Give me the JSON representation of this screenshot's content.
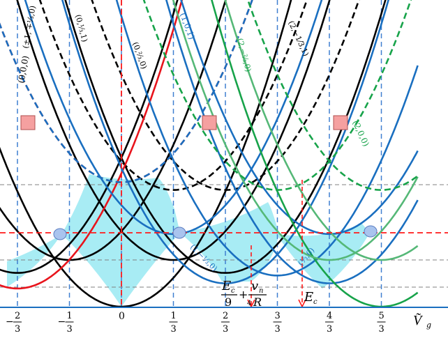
{
  "x_ticks": [
    {
      "id": "m2",
      "num": "2",
      "den": "3",
      "sign": "−",
      "v": -0.6667
    },
    {
      "id": "m1",
      "num": "1",
      "den": "3",
      "sign": "−",
      "v": -0.3333
    },
    {
      "id": "z",
      "num": "0",
      "den": "",
      "sign": "",
      "v": 0
    },
    {
      "id": "p1",
      "num": "1",
      "den": "3",
      "sign": "",
      "v": 0.3333
    },
    {
      "id": "p2",
      "num": "2",
      "den": "3",
      "sign": "",
      "v": 0.6667
    },
    {
      "id": "p3",
      "num": "3",
      "den": "3",
      "sign": "",
      "v": 1.0
    },
    {
      "id": "p4",
      "num": "4",
      "den": "3",
      "sign": "",
      "v": 1.3333
    },
    {
      "id": "p5",
      "num": "5",
      "den": "3",
      "sign": "",
      "v": 1.6667
    }
  ],
  "axis_label": "V͂",
  "axis_label_sub": "g",
  "state_labels": {
    "s000": "(0,0,0)",
    "spm": "(±1, ∓¹⁄₃,0)",
    "s0131": "(0,¹⁄₃,1)",
    "s0230": "(0,²⁄₃,0)",
    "s101": "(1,0,1)",
    "s2230": "(2,−²⁄₃,0)",
    "s2131": "(2,−1⁄3,1)",
    "s200": "(2,0,0)",
    "s1130": "(1,−¹⁄₃,0)",
    "s130": "(¹⁄₃,0)"
  },
  "annotations": {
    "ec_num": "E",
    "ec_sub": "c",
    "ec_den": "9",
    "plus": "+",
    "v_num": "v",
    "v_sub": "n",
    "v_den_4": "4",
    "v_den_r": "R",
    "ec_right": "E",
    "ec_right_sub": "c"
  },
  "colors": {
    "black": "#000000",
    "red": "#e8141c",
    "blue": "#1a6fc0",
    "green": "#17a34a",
    "lightgreen": "#55b877",
    "shade": "#a8ecf4",
    "vgrid": "#3f7fd0",
    "hgrid": "#808080",
    "reddash": "#ff1a1a",
    "square": "#f5a0a0",
    "circle": "#a9c4ee"
  }
}
